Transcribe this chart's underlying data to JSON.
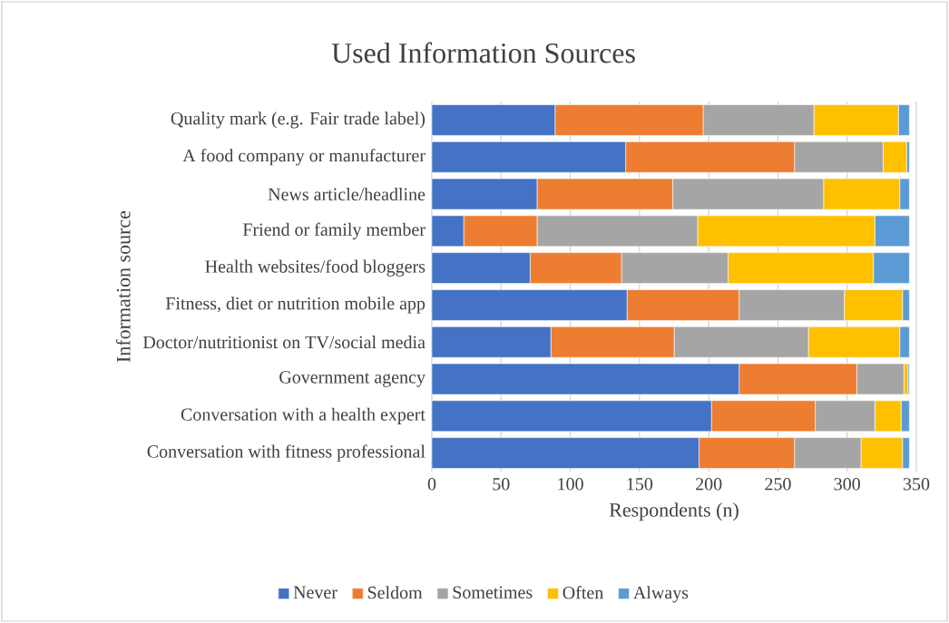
{
  "chart_data": {
    "type": "bar",
    "orientation": "horizontal",
    "stacked": true,
    "title": "Used Information Sources",
    "xlabel": "Respondents (n)",
    "ylabel": "Information source",
    "categories": [
      "Quality mark (e.g. Fair trade label)",
      "A food company or manufacturer",
      "News article/headline",
      "Friend or family member",
      "Health websites/food bloggers",
      "Fitness, diet or nutrition mobile app",
      "Doctor/nutritionist on TV/social media",
      "Government agency",
      "Conversation with a health expert",
      "Conversation with fitness professional"
    ],
    "series": [
      {
        "name": "Never",
        "color": "#4472c4",
        "values": [
          89,
          140,
          76,
          23,
          71,
          141,
          86,
          222,
          202,
          193
        ]
      },
      {
        "name": "Seldom",
        "color": "#ed7d31",
        "values": [
          107,
          122,
          98,
          53,
          66,
          81,
          89,
          85,
          75,
          69
        ]
      },
      {
        "name": "Sometimes",
        "color": "#a5a5a5",
        "values": [
          80,
          64,
          109,
          116,
          77,
          76,
          97,
          34,
          43,
          48
        ]
      },
      {
        "name": "Often",
        "color": "#ffc000",
        "values": [
          61,
          17,
          55,
          128,
          105,
          42,
          66,
          3,
          19,
          30
        ]
      },
      {
        "name": "Always",
        "color": "#5b9bd5",
        "values": [
          8,
          2,
          7,
          25,
          26,
          5,
          7,
          1,
          6,
          5
        ]
      }
    ],
    "xlim": [
      0,
      350
    ],
    "xticks": [
      0,
      50,
      100,
      150,
      200,
      250,
      300,
      350
    ],
    "grid": "x",
    "legend": "bottom"
  }
}
